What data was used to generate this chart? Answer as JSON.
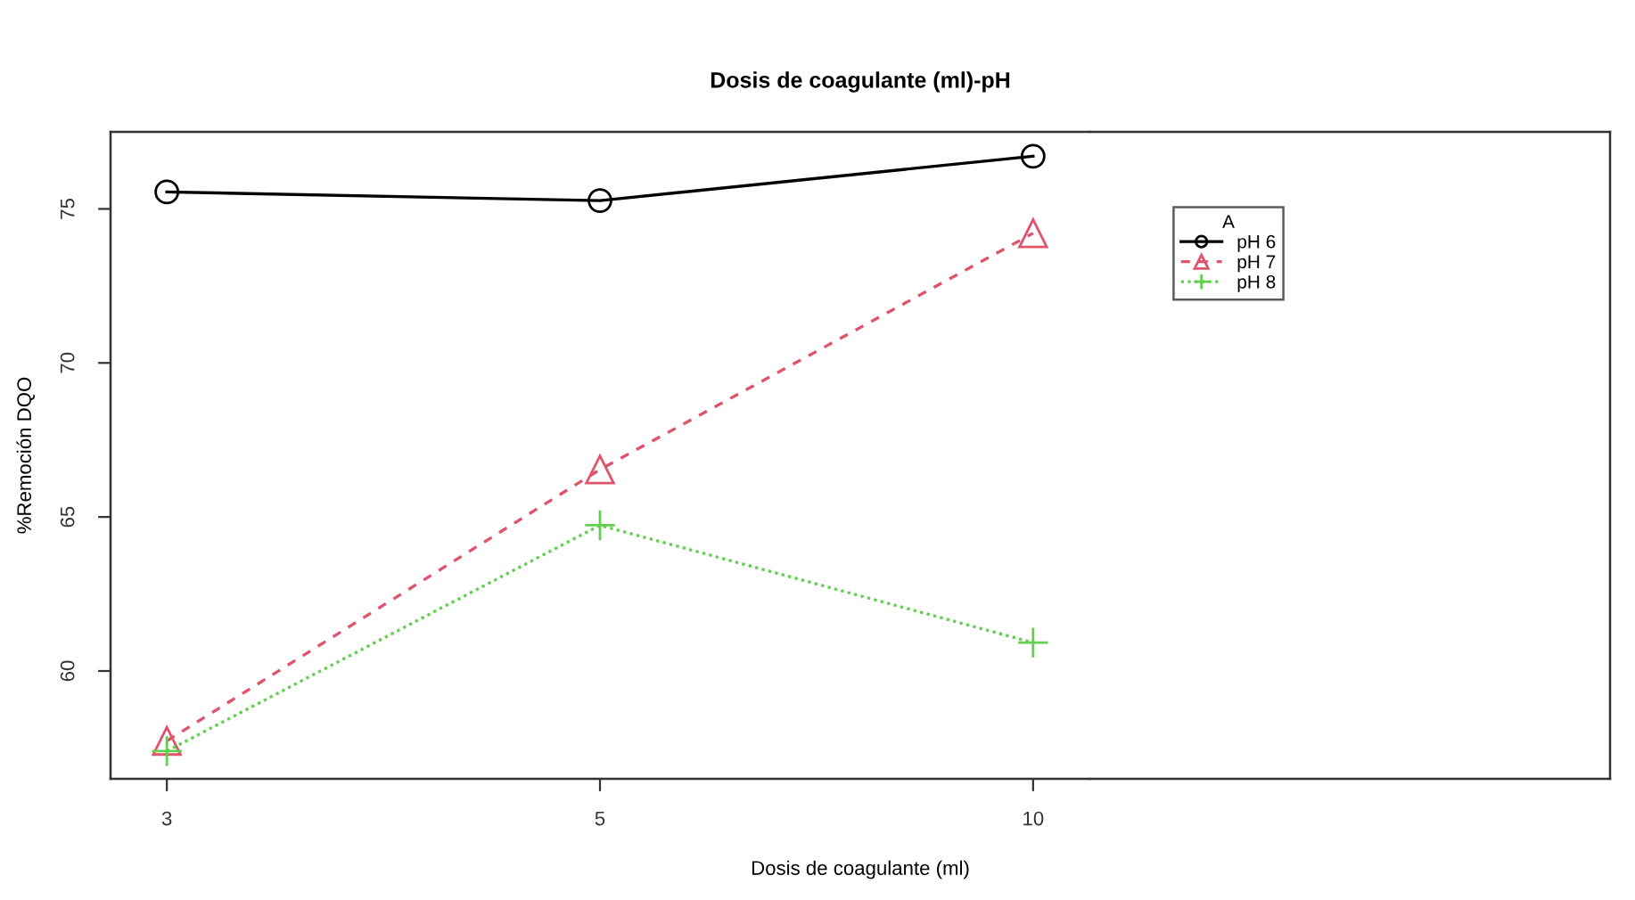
{
  "chart_data": {
    "type": "line",
    "title": "Dosis de coagulante (ml)-pH",
    "xlabel": "Dosis de coagulante (ml)",
    "ylabel": "%Remoción DQO",
    "legend_title": "A",
    "categories": [
      "3",
      "5",
      "10"
    ],
    "series": [
      {
        "name": "pH 6",
        "color": "#000000",
        "values": [
          75.55,
          75.27,
          76.71
        ],
        "marker": "circle",
        "line_style": "solid"
      },
      {
        "name": "pH 7",
        "color": "#df536b",
        "values": [
          57.73,
          66.54,
          74.21
        ],
        "marker": "triangle",
        "line_style": "dashed"
      },
      {
        "name": "pH 8",
        "color": "#61d04f",
        "values": [
          57.4,
          64.73,
          60.92
        ],
        "marker": "cross",
        "line_style": "dotted"
      }
    ],
    "ylim": [
      56.5,
      77.5
    ],
    "yticks": [
      60,
      65,
      70,
      75
    ],
    "grid": false,
    "legend": "top right"
  }
}
